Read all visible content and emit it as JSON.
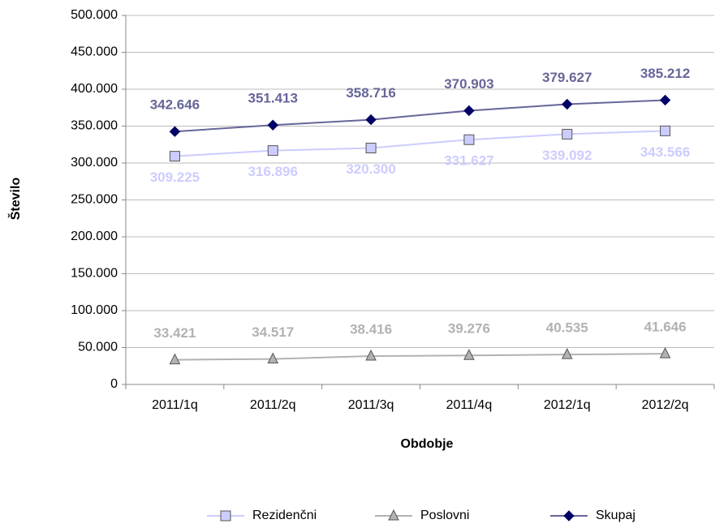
{
  "chart_data": {
    "type": "line",
    "x_label": "Obdobje",
    "y_label": "Število",
    "categories": [
      "2011/1q",
      "2011/2q",
      "2011/3q",
      "2011/4q",
      "2012/1q",
      "2012/2q"
    ],
    "series": [
      {
        "name": "Rezidenčni",
        "color": "#ccccff",
        "marker": "square",
        "marker_color": "#ccccff",
        "label_position": "below",
        "values": [
          309225,
          316896,
          320300,
          331627,
          339092,
          343566
        ],
        "value_labels": [
          "309.225",
          "316.896",
          "320.300",
          "331.627",
          "339.092",
          "343.566"
        ]
      },
      {
        "name": "Poslovni",
        "color": "#b2b2b2",
        "marker": "triangle",
        "marker_color": "#b2b2b2",
        "label_position": "above",
        "values": [
          33421,
          34517,
          38416,
          39276,
          40535,
          41646
        ],
        "value_labels": [
          "33.421",
          "34.517",
          "38.416",
          "39.276",
          "40.535",
          "41.646"
        ]
      },
      {
        "name": "Skupaj",
        "color": "#666699",
        "marker": "diamond",
        "marker_color": "#000066",
        "label_position": "above",
        "values": [
          342646,
          351413,
          358716,
          370903,
          379627,
          385212
        ],
        "value_labels": [
          "342.646",
          "351.413",
          "358.716",
          "370.903",
          "379.627",
          "385.212"
        ]
      }
    ],
    "ylim": [
      0,
      500000
    ],
    "yticks": [
      0,
      {
        "value": 50000,
        "label": "50.000"
      },
      {
        "value": 100000,
        "label": "100.000"
      },
      {
        "value": 150000,
        "label": "150.000"
      },
      {
        "value": 200000,
        "label": "200.000"
      },
      {
        "value": 250000,
        "label": "250.000"
      },
      {
        "value": 300000,
        "label": "300.000"
      },
      {
        "value": 350000,
        "label": "350.000"
      },
      {
        "value": 400000,
        "label": "400.000"
      },
      {
        "value": 450000,
        "label": "450.000"
      },
      {
        "value": 500000,
        "label": "500.000"
      }
    ],
    "grid": true,
    "legend": "bottom"
  }
}
